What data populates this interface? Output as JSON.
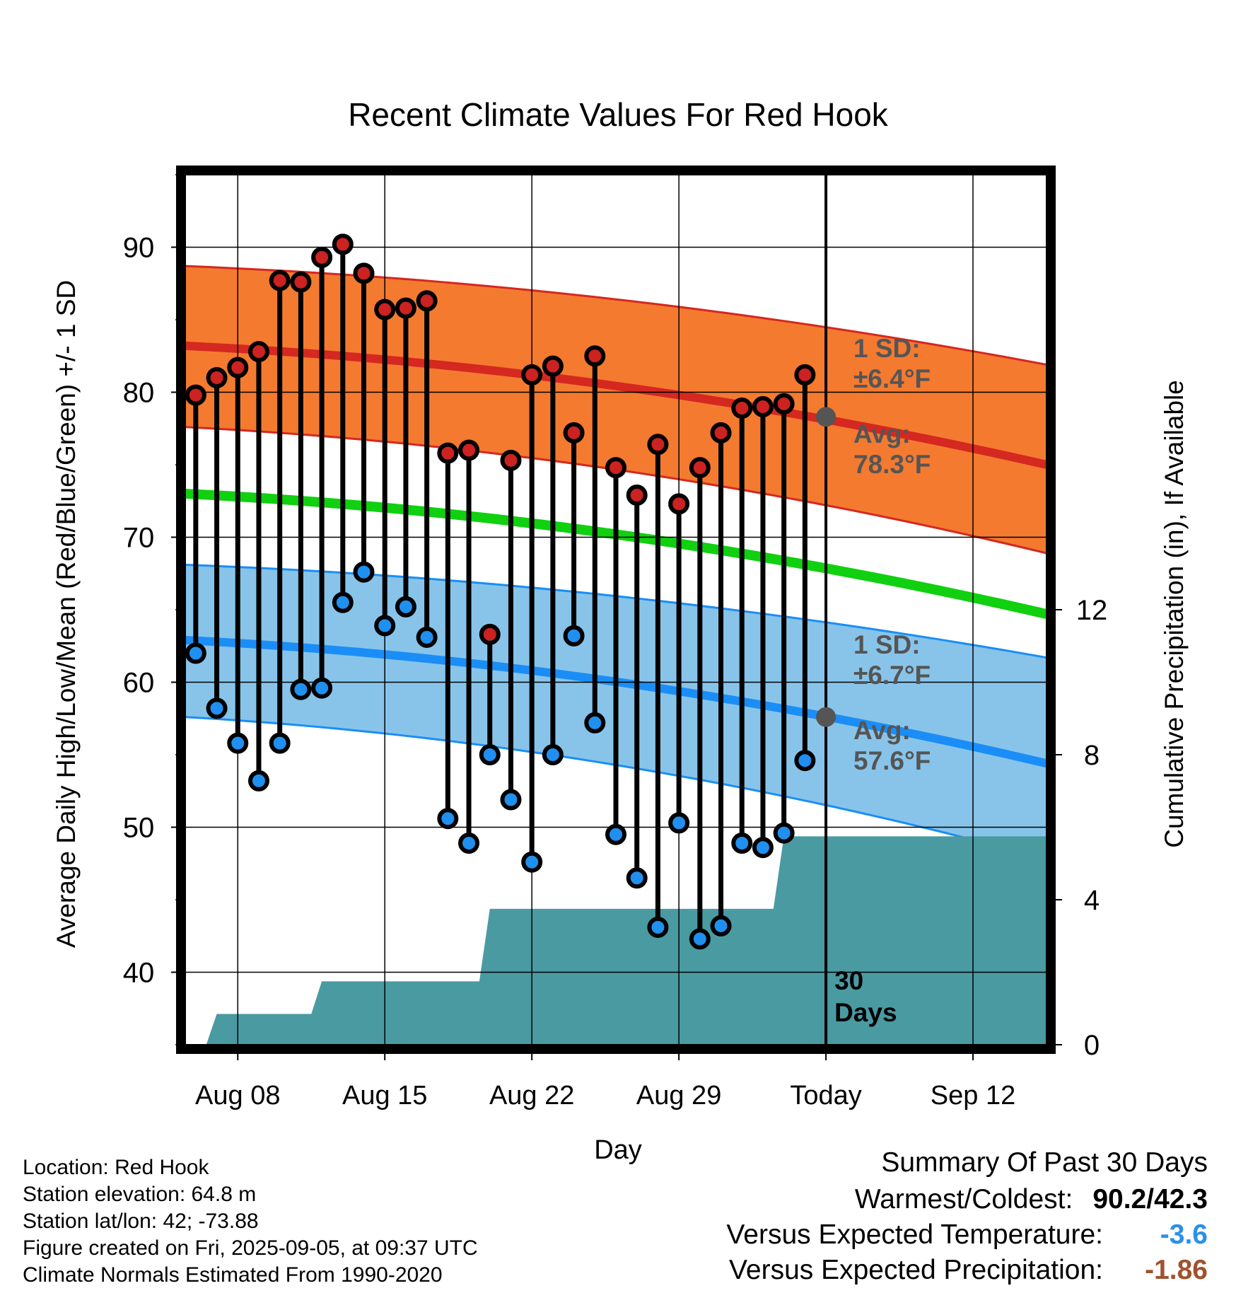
{
  "chart_data": {
    "type": "line",
    "title": "Recent Climate Values For Red Hook",
    "xlabel": "Day",
    "ylabel_left": "Average Daily High/Low/Mean (Red/Blue/Green) +/- 1 SD",
    "ylabel_right": "Cumulative Precipitation (in), If Available",
    "x_tick_labels": [
      "Aug 08",
      "Aug 15",
      "Aug 22",
      "Aug 29",
      "Today",
      "Sep 12"
    ],
    "y_left_ticks": [
      "40",
      "50",
      "60",
      "70",
      "80",
      "90"
    ],
    "y_right_ticks": [
      "0",
      "4",
      "8",
      "12"
    ],
    "ylim_left": [
      35,
      95
    ],
    "ylim_right": [
      0,
      24
    ],
    "xlim_day_offset": [
      -30.5,
      10.5
    ],
    "grid": true,
    "today_label": "30 Days",
    "daily_temps": {
      "day_offset": [
        -30,
        -29,
        -28,
        -27,
        -26,
        -25,
        -24,
        -23,
        -22,
        -21,
        -20,
        -19,
        -18,
        -17,
        -16,
        -15,
        -14,
        -13,
        -12,
        -11,
        -10,
        -9,
        -8,
        -7,
        -6,
        -5,
        -4,
        -3,
        -2,
        -1
      ],
      "high": [
        79.8,
        81.0,
        81.7,
        82.8,
        87.7,
        87.6,
        89.3,
        90.2,
        88.2,
        85.7,
        85.8,
        86.3,
        75.8,
        76.0,
        63.3,
        75.3,
        81.2,
        81.8,
        77.2,
        82.5,
        74.8,
        72.9,
        76.4,
        72.3,
        74.8,
        77.2,
        78.9,
        79.0,
        79.2,
        81.2
      ],
      "low": [
        62.0,
        58.2,
        55.8,
        53.2,
        55.8,
        59.5,
        59.6,
        65.5,
        67.6,
        63.9,
        65.2,
        63.1,
        50.6,
        48.9,
        55.0,
        51.9,
        47.6,
        55.0,
        63.2,
        57.2,
        49.5,
        46.5,
        43.1,
        50.3,
        42.3,
        43.2,
        48.9,
        48.6,
        49.6,
        54.6
      ]
    },
    "normals": {
      "day_offset": [
        -30.5,
        10.5
      ],
      "high_avg": [
        83.2,
        75.0
      ],
      "high_sd_upper": [
        88.7,
        81.9
      ],
      "high_sd_lower": [
        77.6,
        68.9
      ],
      "mean_avg": [
        73.0,
        64.7
      ],
      "low_avg": [
        62.9,
        54.4
      ],
      "low_sd_upper": [
        68.1,
        61.7
      ],
      "low_sd_lower": [
        57.6,
        47.8
      ]
    },
    "precipitation": {
      "day_offset": [
        -30.5,
        -29.5,
        -29,
        -24.5,
        -24,
        -18.5,
        -18,
        -16.5,
        -16,
        -2.5,
        -2,
        10.5
      ],
      "cumulative": [
        0.0,
        0.0,
        0.85,
        0.85,
        1.75,
        1.75,
        1.75,
        1.75,
        3.75,
        3.75,
        5.75,
        5.75
      ]
    },
    "annotations": {
      "high_sd_label_1": "1 SD:",
      "high_sd_label_2": "±6.4°F",
      "high_avg_label_1": "Avg:",
      "high_avg_label_2": "78.3°F",
      "low_sd_label_1": "1 SD:",
      "low_sd_label_2": "±6.7°F",
      "low_avg_label_1": "Avg:",
      "low_avg_label_2": "57.6°F"
    },
    "colors": {
      "high_band": "#f47a30",
      "high_line": "#d42820",
      "mean_line": "#10d010",
      "low_band": "#88c4ea",
      "low_line": "#1a8ef6",
      "precip": "#4a9aa2",
      "high_dot": "#cc2222",
      "low_dot": "#2090f0",
      "avg_dot": "#555555",
      "annotation": "#555555"
    }
  },
  "station_info": {
    "location": "Location: Red Hook",
    "elevation": "Station elevation: 64.8 m",
    "latlon": "Station lat/lon: 42; -73.88",
    "created": "Figure created on Fri, 2025-09-05, at 09:37 UTC",
    "normals": "Climate Normals Estimated From 1990-2020"
  },
  "summary": {
    "title": "Summary Of Past 30 Days",
    "warmest_coldest_label": "Warmest/Coldest:",
    "warmest_coldest_value": "90.2/42.3",
    "temp_label": "Versus Expected Temperature:",
    "temp_value": "-3.6",
    "temp_color": "#2a90ea",
    "precip_label": "Versus Expected Precipitation:",
    "precip_value": "-1.86",
    "precip_color": "#a0522d"
  }
}
